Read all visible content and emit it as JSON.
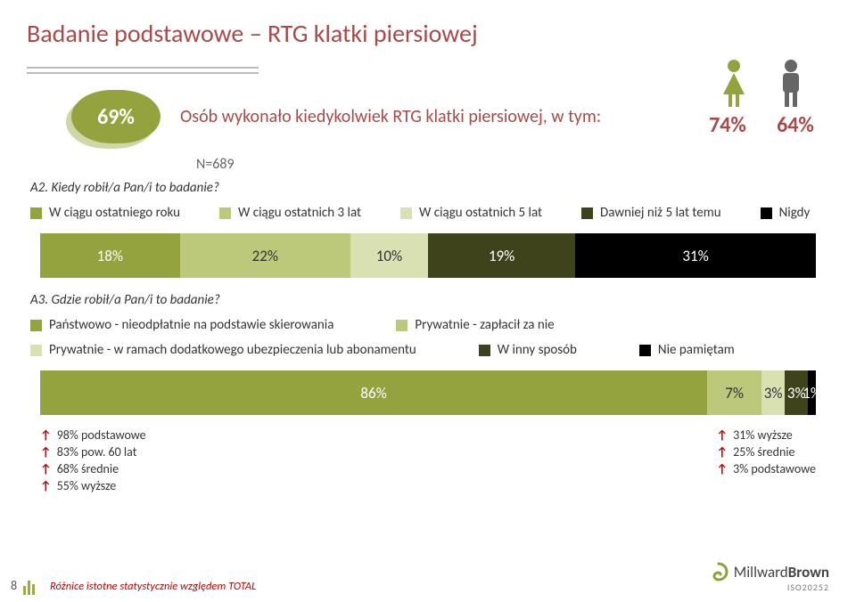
{
  "title": "Badanie podstawowe – RTG klatki piersiowej",
  "headline_pct": "69%",
  "headline_text": "Osób wykonało kiedykolwiek RTG klatki piersiowej, w tym:",
  "n_label": "N=689",
  "gender": {
    "female_color": "#94a33d",
    "male_color": "#666666",
    "female_pct": "74%",
    "male_pct": "64%"
  },
  "q_a2": "A2. Kiedy robił/a Pan/i to badanie?",
  "legend_a2": [
    {
      "label": "W ciągu ostatniego roku",
      "color": "#94a33d"
    },
    {
      "label": "W ciągu ostatnich 3 lat",
      "color": "#bdc97a"
    },
    {
      "label": "W ciągu ostatnich 5 lat",
      "color": "#d9e1b3"
    },
    {
      "label": "Dawniej niż 5 lat temu",
      "color": "#3e431b"
    },
    {
      "label": "Nigdy",
      "color": "#000000"
    }
  ],
  "bar_a2": [
    {
      "pct": 18,
      "label": "18%",
      "color": "#94a33d",
      "text": "#ffffff"
    },
    {
      "pct": 22,
      "label": "22%",
      "color": "#bdc97a",
      "text": "#333333"
    },
    {
      "pct": 10,
      "label": "10%",
      "color": "#d9e1b3",
      "text": "#333333"
    },
    {
      "pct": 19,
      "label": "19%",
      "color": "#3e431b",
      "text": "#ffffff"
    },
    {
      "pct": 31,
      "label": "31%",
      "color": "#000000",
      "text": "#ffffff"
    }
  ],
  "q_a3": "A3. Gdzie robił/a Pan/i to badanie?",
  "legend_a3": [
    {
      "label": "Państwowo - nieodpłatnie na podstawie skierowania",
      "color": "#94a33d"
    },
    {
      "label": "Prywatnie - zapłacił za nie",
      "color": "#bdc97a"
    },
    {
      "label": "Prywatnie - w ramach dodatkowego ubezpieczenia lub abonamentu",
      "color": "#d9e1b3"
    },
    {
      "label": "W inny sposób",
      "color": "#3e431b"
    },
    {
      "label": "Nie pamiętam",
      "color": "#000000"
    }
  ],
  "bar_a3": [
    {
      "pct": 86,
      "label": "86%",
      "color": "#94a33d",
      "text": "#ffffff"
    },
    {
      "pct": 7,
      "label": "7%",
      "color": "#bdc97a",
      "text": "#333333"
    },
    {
      "pct": 3,
      "label": "3%",
      "color": "#d9e1b3",
      "text": "#333333"
    },
    {
      "pct": 3,
      "label": "3%",
      "color": "#3e431b",
      "text": "#ffffff"
    },
    {
      "pct": 1,
      "label": "1%",
      "color": "#000000",
      "text": "#ffffff"
    }
  ],
  "arrows_left": [
    "98% podstawowe",
    "83% pow. 60 lat",
    "68% średnie",
    "55% wyższe"
  ],
  "arrows_right": [
    "31% wyższe",
    "25% średnie",
    "3% podstawowe"
  ],
  "footnote": "Różnice istotne statystycznie względem TOTAL",
  "page_num": "8",
  "brand": {
    "name_light": "Millward",
    "name_bold": "Brown",
    "iso": "ISO20252",
    "swirl": "#8aa338"
  }
}
